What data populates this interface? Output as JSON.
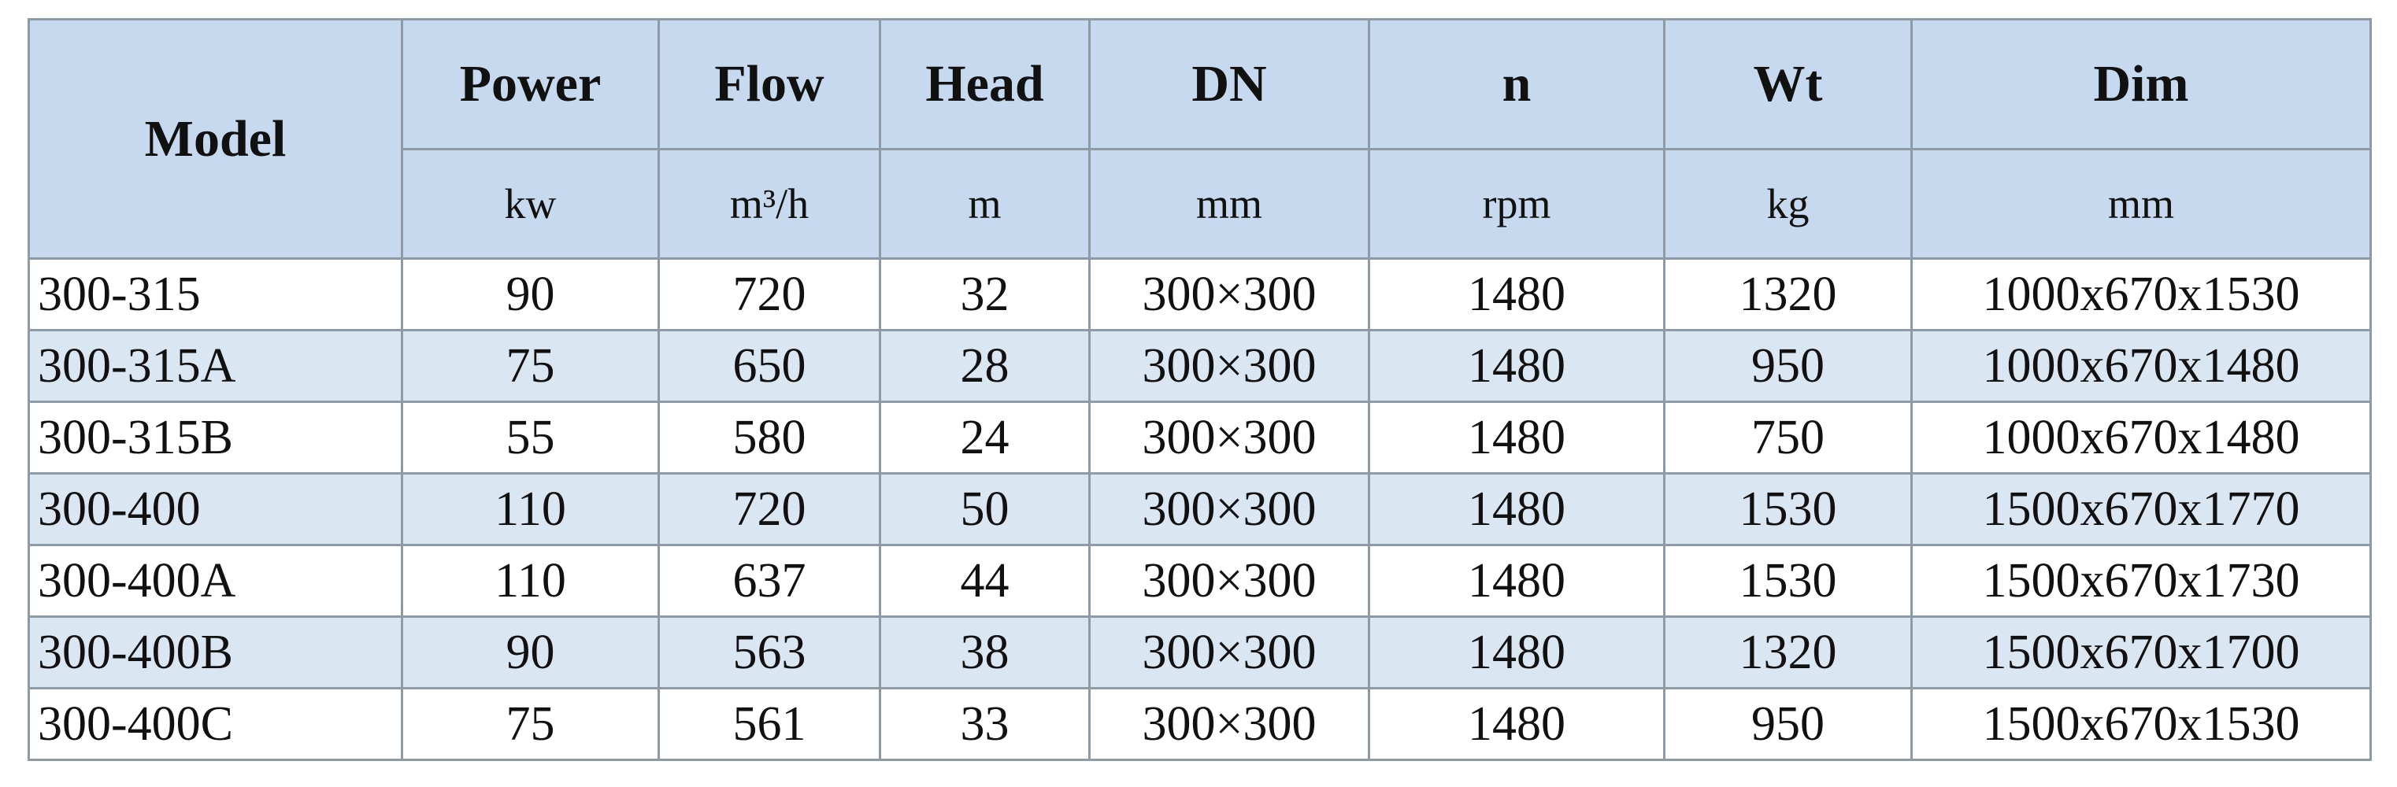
{
  "table": {
    "header": {
      "columns": [
        "Model",
        "Power",
        "Flow",
        "Head",
        "DN",
        "n",
        "Wt",
        "Dim"
      ],
      "units": [
        "kw",
        "m³/h",
        "m",
        "mm",
        "rpm",
        "kg",
        "mm"
      ]
    },
    "rows": [
      [
        "300-315",
        "90",
        "720",
        "32",
        "300×300",
        "1480",
        "1320",
        "1000x670x1530"
      ],
      [
        "300-315A",
        "75",
        "650",
        "28",
        "300×300",
        "1480",
        "950",
        "1000x670x1480"
      ],
      [
        "300-315B",
        "55",
        "580",
        "24",
        "300×300",
        "1480",
        "750",
        "1000x670x1480"
      ],
      [
        "300-400",
        "110",
        "720",
        "50",
        "300×300",
        "1480",
        "1530",
        "1500x670x1770"
      ],
      [
        "300-400A",
        "110",
        "637",
        "44",
        "300×300",
        "1480",
        "1530",
        "1500x670x1730"
      ],
      [
        "300-400B",
        "90",
        "563",
        "38",
        "300×300",
        "1480",
        "1320",
        "1500x670x1700"
      ],
      [
        "300-400C",
        "75",
        "561",
        "33",
        "300×300",
        "1480",
        "950",
        "1500x670x1530"
      ]
    ]
  }
}
